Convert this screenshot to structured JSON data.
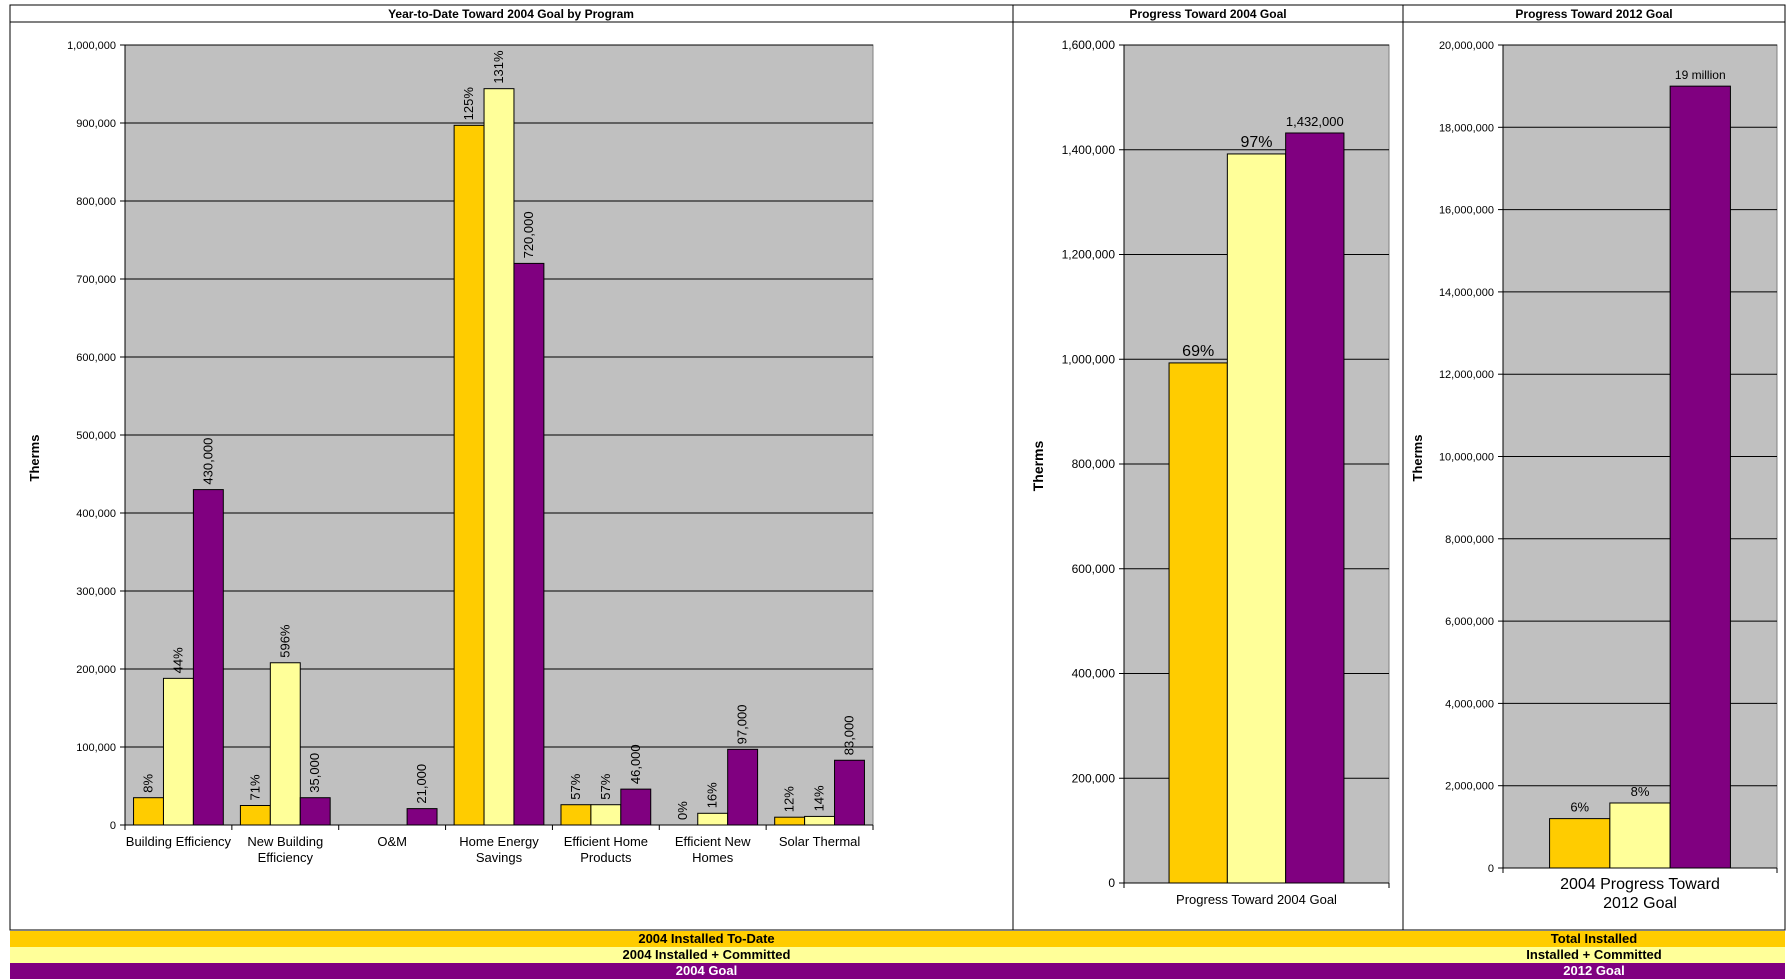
{
  "colors": {
    "installed": "#FFCC00",
    "committed": "#FFFF99",
    "goal": "#800080",
    "plot_bg": "#C0C0C0"
  },
  "banners": {
    "left": {
      "installed": "2004 Installed  To-Date",
      "committed": "2004 Installed + Committed",
      "goal": "2004 Goal"
    },
    "right": {
      "installed": "Total Installed",
      "committed": "Installed + Committed",
      "goal": "2012 Goal"
    }
  },
  "chart_data": [
    {
      "type": "bar",
      "title": "Year-to-Date Toward 2004 Goal by Program",
      "ylabel": "Therms",
      "ylim": [
        0,
        1000000
      ],
      "yticks": [
        "0",
        "100,000",
        "200,000",
        "300,000",
        "400,000",
        "500,000",
        "600,000",
        "700,000",
        "800,000",
        "900,000",
        "1,000,000"
      ],
      "categories": [
        "Building Efficiency",
        "New Building Efficiency",
        "O&M",
        "Home Energy Savings",
        "Efficient Home Products",
        "Efficient New Homes",
        "Solar Thermal"
      ],
      "series": [
        {
          "name": "2004 Installed  To-Date",
          "values": [
            35000,
            25000,
            0,
            897000,
            26000,
            0,
            10000
          ],
          "labels": [
            "8%",
            "71%",
            "",
            "125%",
            "57%",
            "0%",
            "12%"
          ]
        },
        {
          "name": "2004 Installed + Committed",
          "values": [
            188000,
            208000,
            0,
            944000,
            26000,
            15000,
            11000
          ],
          "labels": [
            "44%",
            "596%",
            "",
            "131%",
            "57%",
            "16%",
            "14%"
          ]
        },
        {
          "name": "2004 Goal",
          "values": [
            430000,
            35000,
            21000,
            720000,
            46000,
            97000,
            83000
          ],
          "labels": [
            "430,000",
            "35,000",
            "21,000",
            "720,000",
            "46,000",
            "97,000",
            "83,000"
          ]
        }
      ],
      "grid": true
    },
    {
      "type": "bar",
      "title": "Progress Toward 2004 Goal",
      "ylabel": "Therms",
      "ylim": [
        0,
        1600000
      ],
      "yticks": [
        "0",
        "200,000",
        "400,000",
        "600,000",
        "800,000",
        "1,000,000",
        "1,200,000",
        "1,400,000",
        "1,600,000"
      ],
      "categories": [
        "Progress Toward 2004 Goal"
      ],
      "series": [
        {
          "name": "2004 Installed  To-Date",
          "values": [
            993000
          ],
          "labels": [
            "69%"
          ]
        },
        {
          "name": "2004 Installed + Committed",
          "values": [
            1392000
          ],
          "labels": [
            "97%"
          ]
        },
        {
          "name": "2004 Goal",
          "values": [
            1432000
          ],
          "labels": [
            "1,432,000"
          ]
        }
      ],
      "grid": true
    },
    {
      "type": "bar",
      "title": "Progress Toward 2012 Goal",
      "ylabel": "Therms",
      "ylim": [
        0,
        20000000
      ],
      "yticks": [
        "0",
        "2,000,000",
        "4,000,000",
        "6,000,000",
        "8,000,000",
        "10,000,000",
        "12,000,000",
        "14,000,000",
        "16,000,000",
        "18,000,000",
        "20,000,000"
      ],
      "categories": [
        "2004 Progress Toward 2012 Goal"
      ],
      "series": [
        {
          "name": "Total Installed",
          "values": [
            1200000
          ],
          "labels": [
            "6%"
          ]
        },
        {
          "name": "Installed + Committed",
          "values": [
            1580000
          ],
          "labels": [
            "8%"
          ]
        },
        {
          "name": "2012 Goal",
          "values": [
            19000000
          ],
          "labels": [
            "19 million"
          ]
        }
      ],
      "grid": true
    }
  ]
}
